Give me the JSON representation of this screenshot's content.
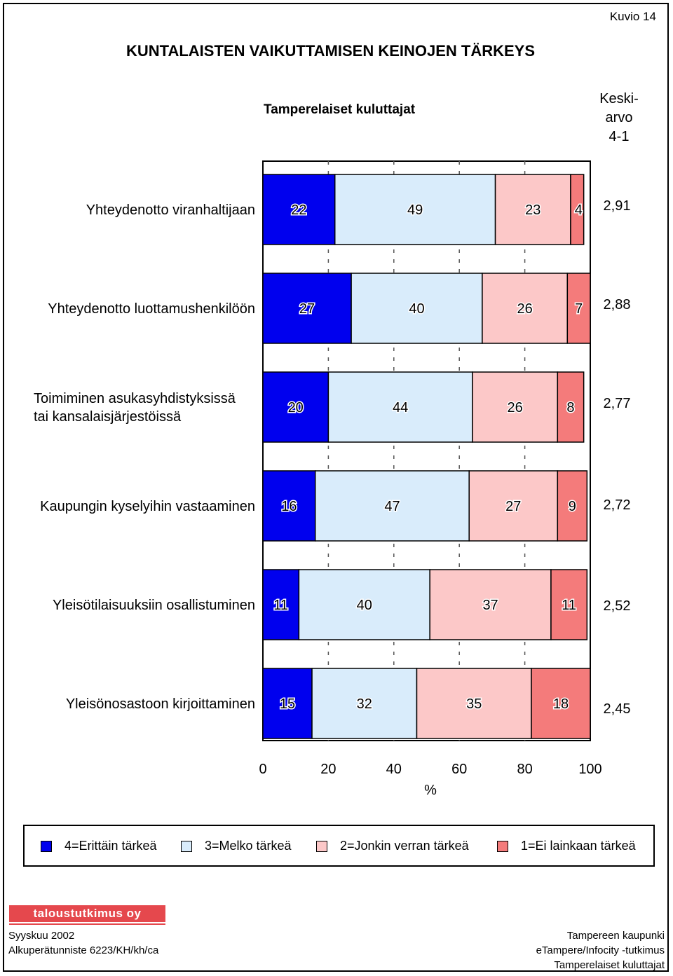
{
  "figure_label": "Kuvio 14",
  "title": "KUNTALAISTEN VAIKUTTAMISEN KEINOJEN TÄRKEYS",
  "subtitle": "Tamperelaiset kuluttajat",
  "mean_header": [
    "Keski-",
    "arvo",
    "4-1"
  ],
  "colors": {
    "c4": "#0000ee",
    "c3": "#d9ecfb",
    "c2": "#fcc8c8",
    "c1": "#f47b7b"
  },
  "chart_data": {
    "type": "bar",
    "orientation": "horizontal",
    "stacked": true,
    "categories": [
      [
        "Yhteydenotto viranhaltijaan"
      ],
      [
        "Yhteydenotto luottamushenkilöön"
      ],
      [
        "Toimiminen asukasyhdistyksissä",
        "tai kansalaisjärjestöissä"
      ],
      [
        "Kaupungin kyselyihin vastaaminen"
      ],
      [
        "Yleisötilaisuuksiin osallistuminen"
      ],
      [
        "Yleisönosastoon kirjoittaminen"
      ]
    ],
    "series": [
      {
        "name": "4=Erittäin tärkeä",
        "values": [
          22,
          27,
          20,
          16,
          11,
          15
        ]
      },
      {
        "name": "3=Melko tärkeä",
        "values": [
          49,
          40,
          44,
          47,
          40,
          32
        ]
      },
      {
        "name": "2=Jonkin verran tärkeä",
        "values": [
          23,
          26,
          26,
          27,
          37,
          35
        ]
      },
      {
        "name": "1=Ei lainkaan tärkeä",
        "values": [
          4,
          7,
          8,
          9,
          11,
          18
        ]
      }
    ],
    "means": [
      "2,91",
      "2,88",
      "2,77",
      "2,72",
      "2,52",
      "2,45"
    ],
    "xlim": [
      0,
      100
    ],
    "xticks": [
      0,
      20,
      40,
      60,
      80,
      100
    ],
    "xlabel": "%",
    "grid": "vertical dashed",
    "legend_position": "bottom"
  },
  "footer": {
    "logo": "taloustutkimus oy",
    "left": [
      "Syyskuu 2002",
      "Alkuperätunniste 6223/KH/kh/ca"
    ],
    "right": [
      "Tampereen kaupunki",
      "eTampere/Infocity -tutkimus",
      "Tamperelaiset kuluttajat"
    ]
  }
}
